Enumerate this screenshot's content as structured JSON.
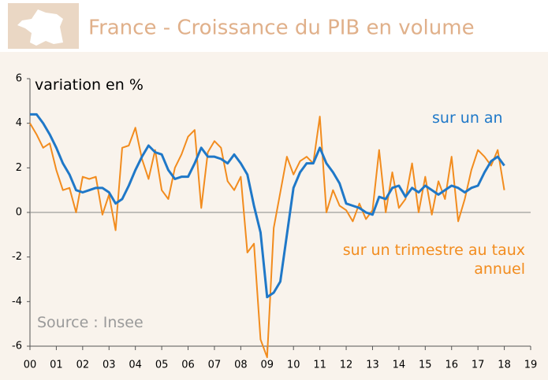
{
  "chart_data": {
    "type": "line",
    "title": "France - Croissance du PIB en volume",
    "y_label": "variation en %",
    "source": "Source : Insee",
    "x": [
      2000,
      2000.25,
      2000.5,
      2000.75,
      2001,
      2001.25,
      2001.5,
      2001.75,
      2002,
      2002.25,
      2002.5,
      2002.75,
      2003,
      2003.25,
      2003.5,
      2003.75,
      2004,
      2004.25,
      2004.5,
      2004.75,
      2005,
      2005.25,
      2005.5,
      2005.75,
      2006,
      2006.25,
      2006.5,
      2006.75,
      2007,
      2007.25,
      2007.5,
      2007.75,
      2008,
      2008.25,
      2008.5,
      2008.75,
      2009,
      2009.25,
      2009.5,
      2009.75,
      2010,
      2010.25,
      2010.5,
      2010.75,
      2011,
      2011.25,
      2011.5,
      2011.75,
      2012,
      2012.25,
      2012.5,
      2012.75,
      2013,
      2013.25,
      2013.5,
      2013.75,
      2014,
      2014.25,
      2014.5,
      2014.75,
      2015,
      2015.25,
      2015.5,
      2015.75,
      2016,
      2016.25,
      2016.5,
      2016.75,
      2017,
      2017.25,
      2017.5,
      2017.75,
      2018
    ],
    "series": [
      {
        "name": "sur un an",
        "color": "#1f78c8",
        "values": [
          4.4,
          4.4,
          4.0,
          3.5,
          2.9,
          2.2,
          1.7,
          1.0,
          0.9,
          1.0,
          1.1,
          1.1,
          0.9,
          0.4,
          0.6,
          1.2,
          1.9,
          2.5,
          3.0,
          2.7,
          2.6,
          1.9,
          1.5,
          1.6,
          1.6,
          2.2,
          2.9,
          2.5,
          2.5,
          2.4,
          2.2,
          2.6,
          2.2,
          1.7,
          0.3,
          -0.9,
          -3.8,
          -3.6,
          -3.1,
          -1.0,
          1.1,
          1.8,
          2.2,
          2.2,
          2.9,
          2.2,
          1.8,
          1.3,
          0.4,
          0.3,
          0.2,
          0.0,
          -0.1,
          0.7,
          0.6,
          1.1,
          1.2,
          0.7,
          1.1,
          0.9,
          1.2,
          1.0,
          0.8,
          1.0,
          1.2,
          1.1,
          0.9,
          1.1,
          1.2,
          1.8,
          2.3,
          2.5,
          2.1
        ]
      },
      {
        "name": "sur un trimestre au taux annuel",
        "color": "#f28c1e",
        "values": [
          4.0,
          3.5,
          2.9,
          3.1,
          1.9,
          1.0,
          1.1,
          0.0,
          1.6,
          1.5,
          1.6,
          -0.1,
          0.8,
          -0.8,
          2.9,
          3.0,
          3.8,
          2.4,
          1.5,
          2.8,
          1.0,
          0.6,
          2.0,
          2.6,
          3.4,
          3.7,
          0.2,
          2.7,
          3.2,
          2.9,
          1.4,
          1.0,
          1.6,
          -1.8,
          -1.4,
          -5.7,
          -6.5,
          -0.7,
          0.9,
          2.5,
          1.7,
          2.3,
          2.5,
          2.2,
          4.3,
          0.0,
          1.0,
          0.3,
          0.1,
          -0.4,
          0.4,
          -0.3,
          0.1,
          2.8,
          0.0,
          1.8,
          0.2,
          0.6,
          2.2,
          0.0,
          1.6,
          -0.1,
          1.4,
          0.6,
          2.5,
          -0.4,
          0.6,
          1.9,
          2.8,
          2.5,
          2.1,
          2.8,
          1.0
        ]
      }
    ],
    "xlim": [
      2000,
      2019
    ],
    "xticks": [
      {
        "value": 2000,
        "label": "00"
      },
      {
        "value": 2001,
        "label": "01"
      },
      {
        "value": 2002,
        "label": "02"
      },
      {
        "value": 2003,
        "label": "03"
      },
      {
        "value": 2004,
        "label": "04"
      },
      {
        "value": 2005,
        "label": "05"
      },
      {
        "value": 2006,
        "label": "06"
      },
      {
        "value": 2007,
        "label": "07"
      },
      {
        "value": 2008,
        "label": "08"
      },
      {
        "value": 2009,
        "label": "09"
      },
      {
        "value": 2010,
        "label": "10"
      },
      {
        "value": 2011,
        "label": "11"
      },
      {
        "value": 2012,
        "label": "12"
      },
      {
        "value": 2013,
        "label": "13"
      },
      {
        "value": 2014,
        "label": "14"
      },
      {
        "value": 2015,
        "label": "15"
      },
      {
        "value": 2016,
        "label": "16"
      },
      {
        "value": 2017,
        "label": "17"
      },
      {
        "value": 2018,
        "label": "18"
      },
      {
        "value": 2019,
        "label": "19"
      }
    ],
    "ylim": [
      -6,
      6
    ],
    "yticks": [
      -6,
      -4,
      -2,
      0,
      2,
      4,
      6
    ]
  }
}
